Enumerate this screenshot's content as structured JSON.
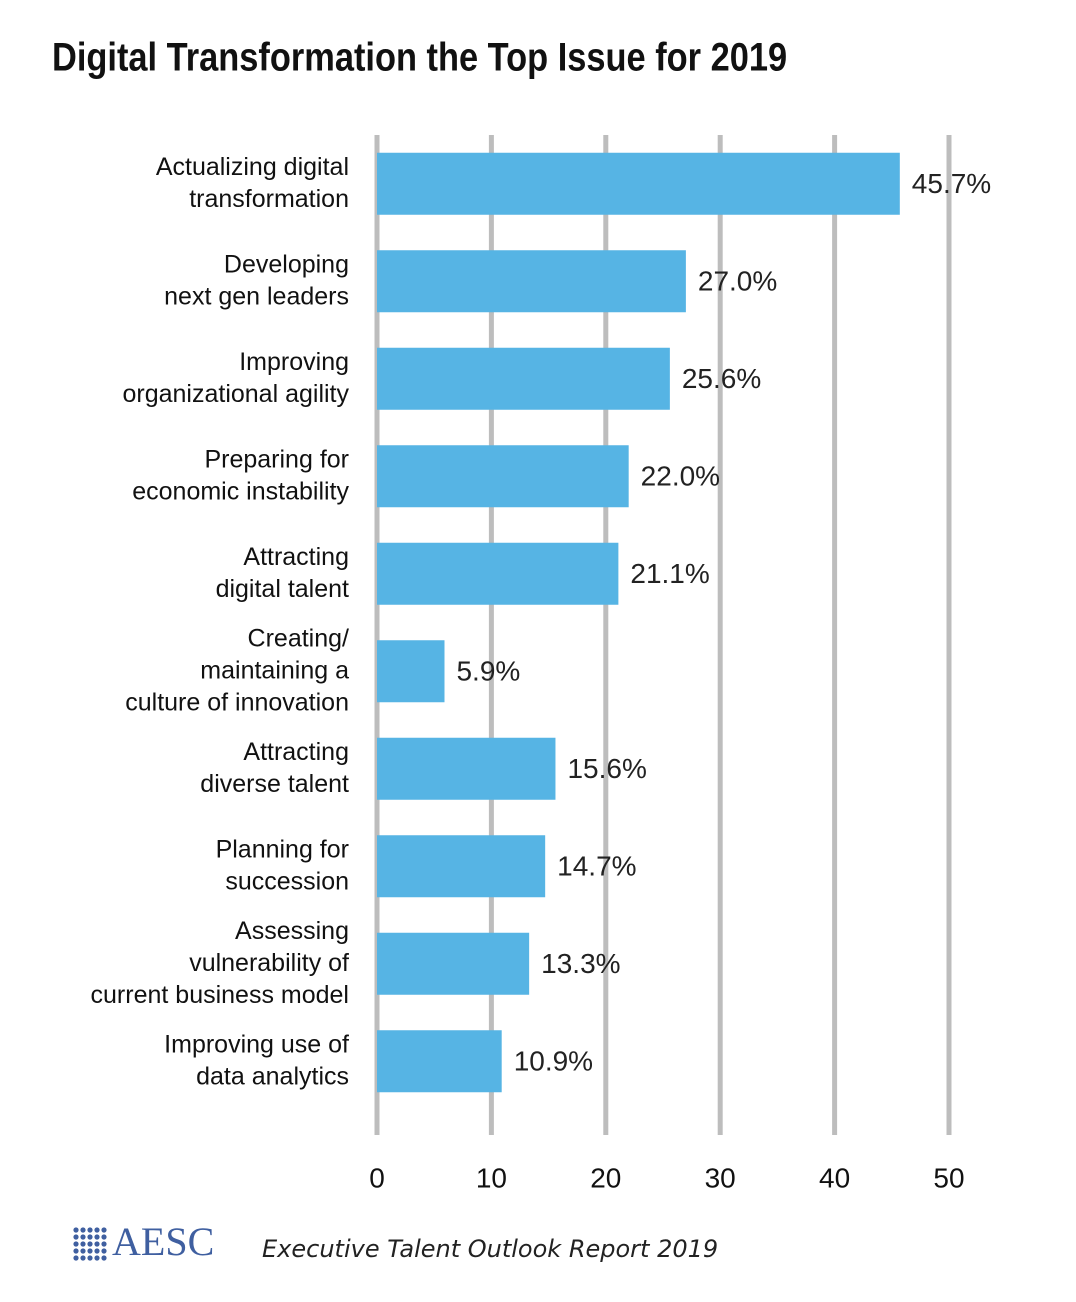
{
  "chart_data": {
    "type": "hbar",
    "title": "Digital Transformation the Top Issue for 2019",
    "categories": [
      "Actualizing digital\ntransformation",
      "Developing\nnext gen leaders",
      "Improving\norganizational agility",
      "Preparing for\neconomic instability",
      "Attracting\ndigital talent",
      "Creating/\nmaintaining a\nculture of innovation",
      "Attracting\ndiverse talent",
      "Planning for\nsuccession",
      "Assessing\nvulnerability of\ncurrent business model",
      "Improving use of\ndata analytics"
    ],
    "values": [
      45.7,
      27.0,
      25.6,
      22.0,
      21.1,
      5.9,
      15.6,
      14.7,
      13.3,
      10.9
    ],
    "value_labels": [
      "45.7%",
      "27.0%",
      "25.6%",
      "22.0%",
      "21.1%",
      "5.9%",
      "15.6%",
      "14.7%",
      "13.3%",
      "10.9%"
    ],
    "color": "#56b4e4",
    "xlim": [
      0,
      50
    ],
    "xticks": [
      0,
      10,
      20,
      30,
      40,
      50
    ],
    "grid": true
  },
  "footer": {
    "logo": "AESC",
    "report": "Executive Talent Outlook Report 2019"
  }
}
